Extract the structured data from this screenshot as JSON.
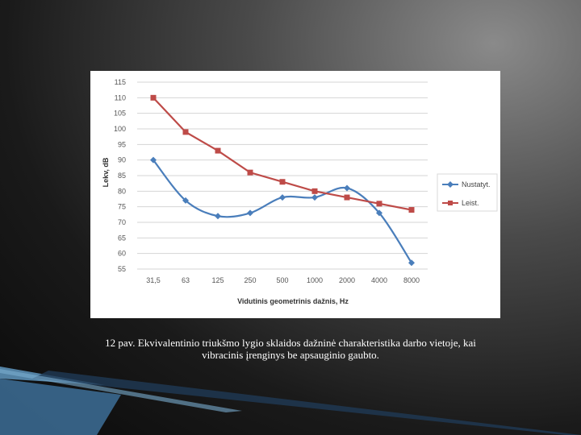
{
  "chart_data": {
    "type": "line",
    "categories": [
      "31,5",
      "63",
      "125",
      "250",
      "500",
      "1000",
      "2000",
      "4000",
      "8000"
    ],
    "series": [
      {
        "name": "Nustatyt.",
        "color": "#4a7ebb",
        "marker": "diamond",
        "values": [
          90,
          77,
          72,
          73,
          78,
          78,
          81,
          73,
          57
        ]
      },
      {
        "name": "Leist.",
        "color": "#be4b48",
        "marker": "square",
        "values": [
          110,
          99,
          93,
          86,
          83,
          80,
          78,
          76,
          74
        ]
      }
    ],
    "ylim": [
      55,
      115
    ],
    "yticks": [
      55,
      60,
      65,
      70,
      75,
      80,
      85,
      90,
      95,
      100,
      105,
      110,
      115
    ],
    "xlabel": "Vidutinis geometrinis dažnis, Hz",
    "ylabel": "Lekv, dB",
    "grid": true,
    "legend_position": "right"
  },
  "caption": {
    "line1": "12 pav. Ekvivalentinio triukšmo lygio sklaidos dažninė charakteristika darbo vietoje, kai",
    "line2": "vibracinis įrenginys be apsauginio gaubto."
  }
}
